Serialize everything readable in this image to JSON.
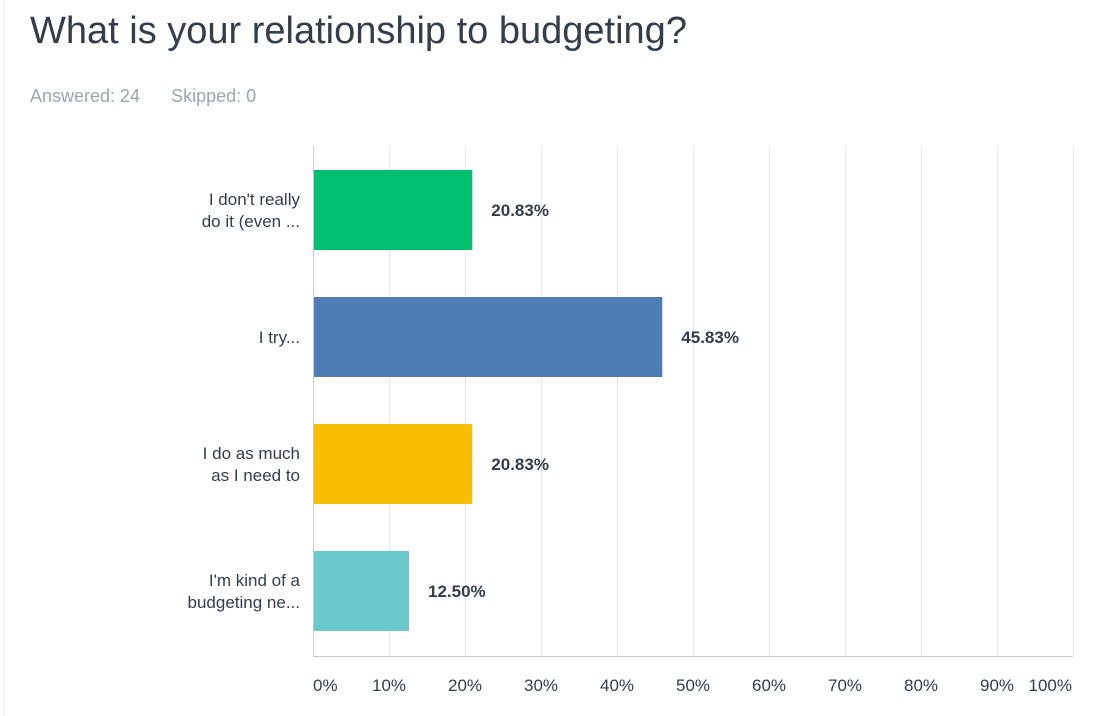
{
  "question": {
    "title": "What is your relationship to budgeting?",
    "answered": "Answered: 24",
    "skipped": "Skipped: 0"
  },
  "chart_data": {
    "type": "bar",
    "orientation": "horizontal",
    "categories": [
      [
        "I don't really",
        "do it (even ..."
      ],
      [
        "I try..."
      ],
      [
        "I do as much",
        "as I need to"
      ],
      [
        "I'm kind of a",
        "budgeting ne..."
      ]
    ],
    "values": [
      20.83,
      45.83,
      20.83,
      12.5
    ],
    "value_labels": [
      "20.83%",
      "45.83%",
      "20.83%",
      "12.50%"
    ],
    "colors": [
      "#00bf6f",
      "#507cb6",
      "#f9be00",
      "#6bc8cd"
    ],
    "xlim": [
      0,
      100
    ],
    "xticks": [
      0,
      10,
      20,
      30,
      40,
      50,
      60,
      70,
      80,
      90,
      100
    ],
    "xtick_labels": [
      "0%",
      "10%",
      "20%",
      "30%",
      "40%",
      "50%",
      "60%",
      "70%",
      "80%",
      "90%",
      "100%"
    ],
    "grid": true,
    "title": "",
    "xlabel": "",
    "ylabel": ""
  }
}
